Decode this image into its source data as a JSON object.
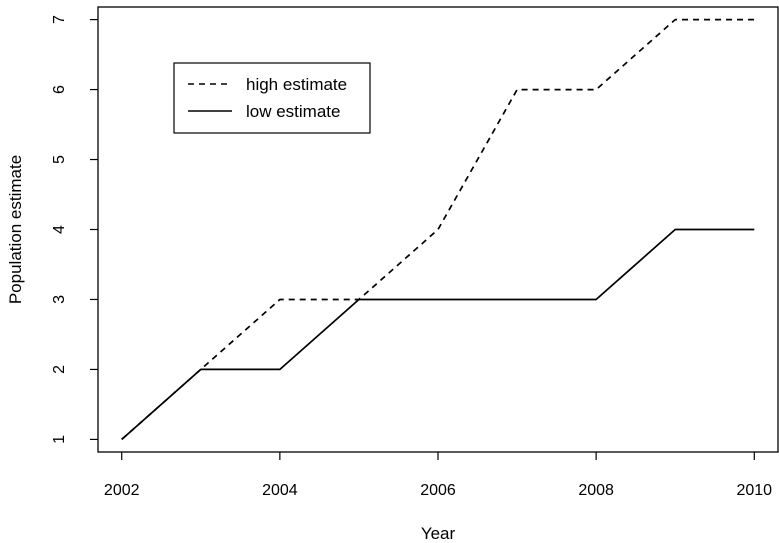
{
  "chart_data": {
    "type": "line",
    "title": "",
    "xlabel": "Year",
    "ylabel": "Population estimate",
    "xlim": [
      2001.7,
      2010.3
    ],
    "ylim": [
      0.82,
      7.18
    ],
    "xticks": [
      2002,
      2004,
      2006,
      2008,
      2010
    ],
    "yticks": [
      1,
      2,
      3,
      4,
      5,
      6,
      7
    ],
    "grid": false,
    "legend_position": "top-left",
    "x": [
      2002,
      2003,
      2004,
      2005,
      2006,
      2007,
      2008,
      2009,
      2010
    ],
    "series": [
      {
        "name": "high estimate",
        "line_style": "dashed",
        "color": "#000000",
        "values": [
          1,
          2,
          3,
          3,
          4,
          6,
          6,
          7,
          7
        ]
      },
      {
        "name": "low estimate",
        "line_style": "solid",
        "color": "#000000",
        "values": [
          1,
          2,
          2,
          3,
          3,
          3,
          3,
          4,
          4
        ]
      }
    ]
  }
}
